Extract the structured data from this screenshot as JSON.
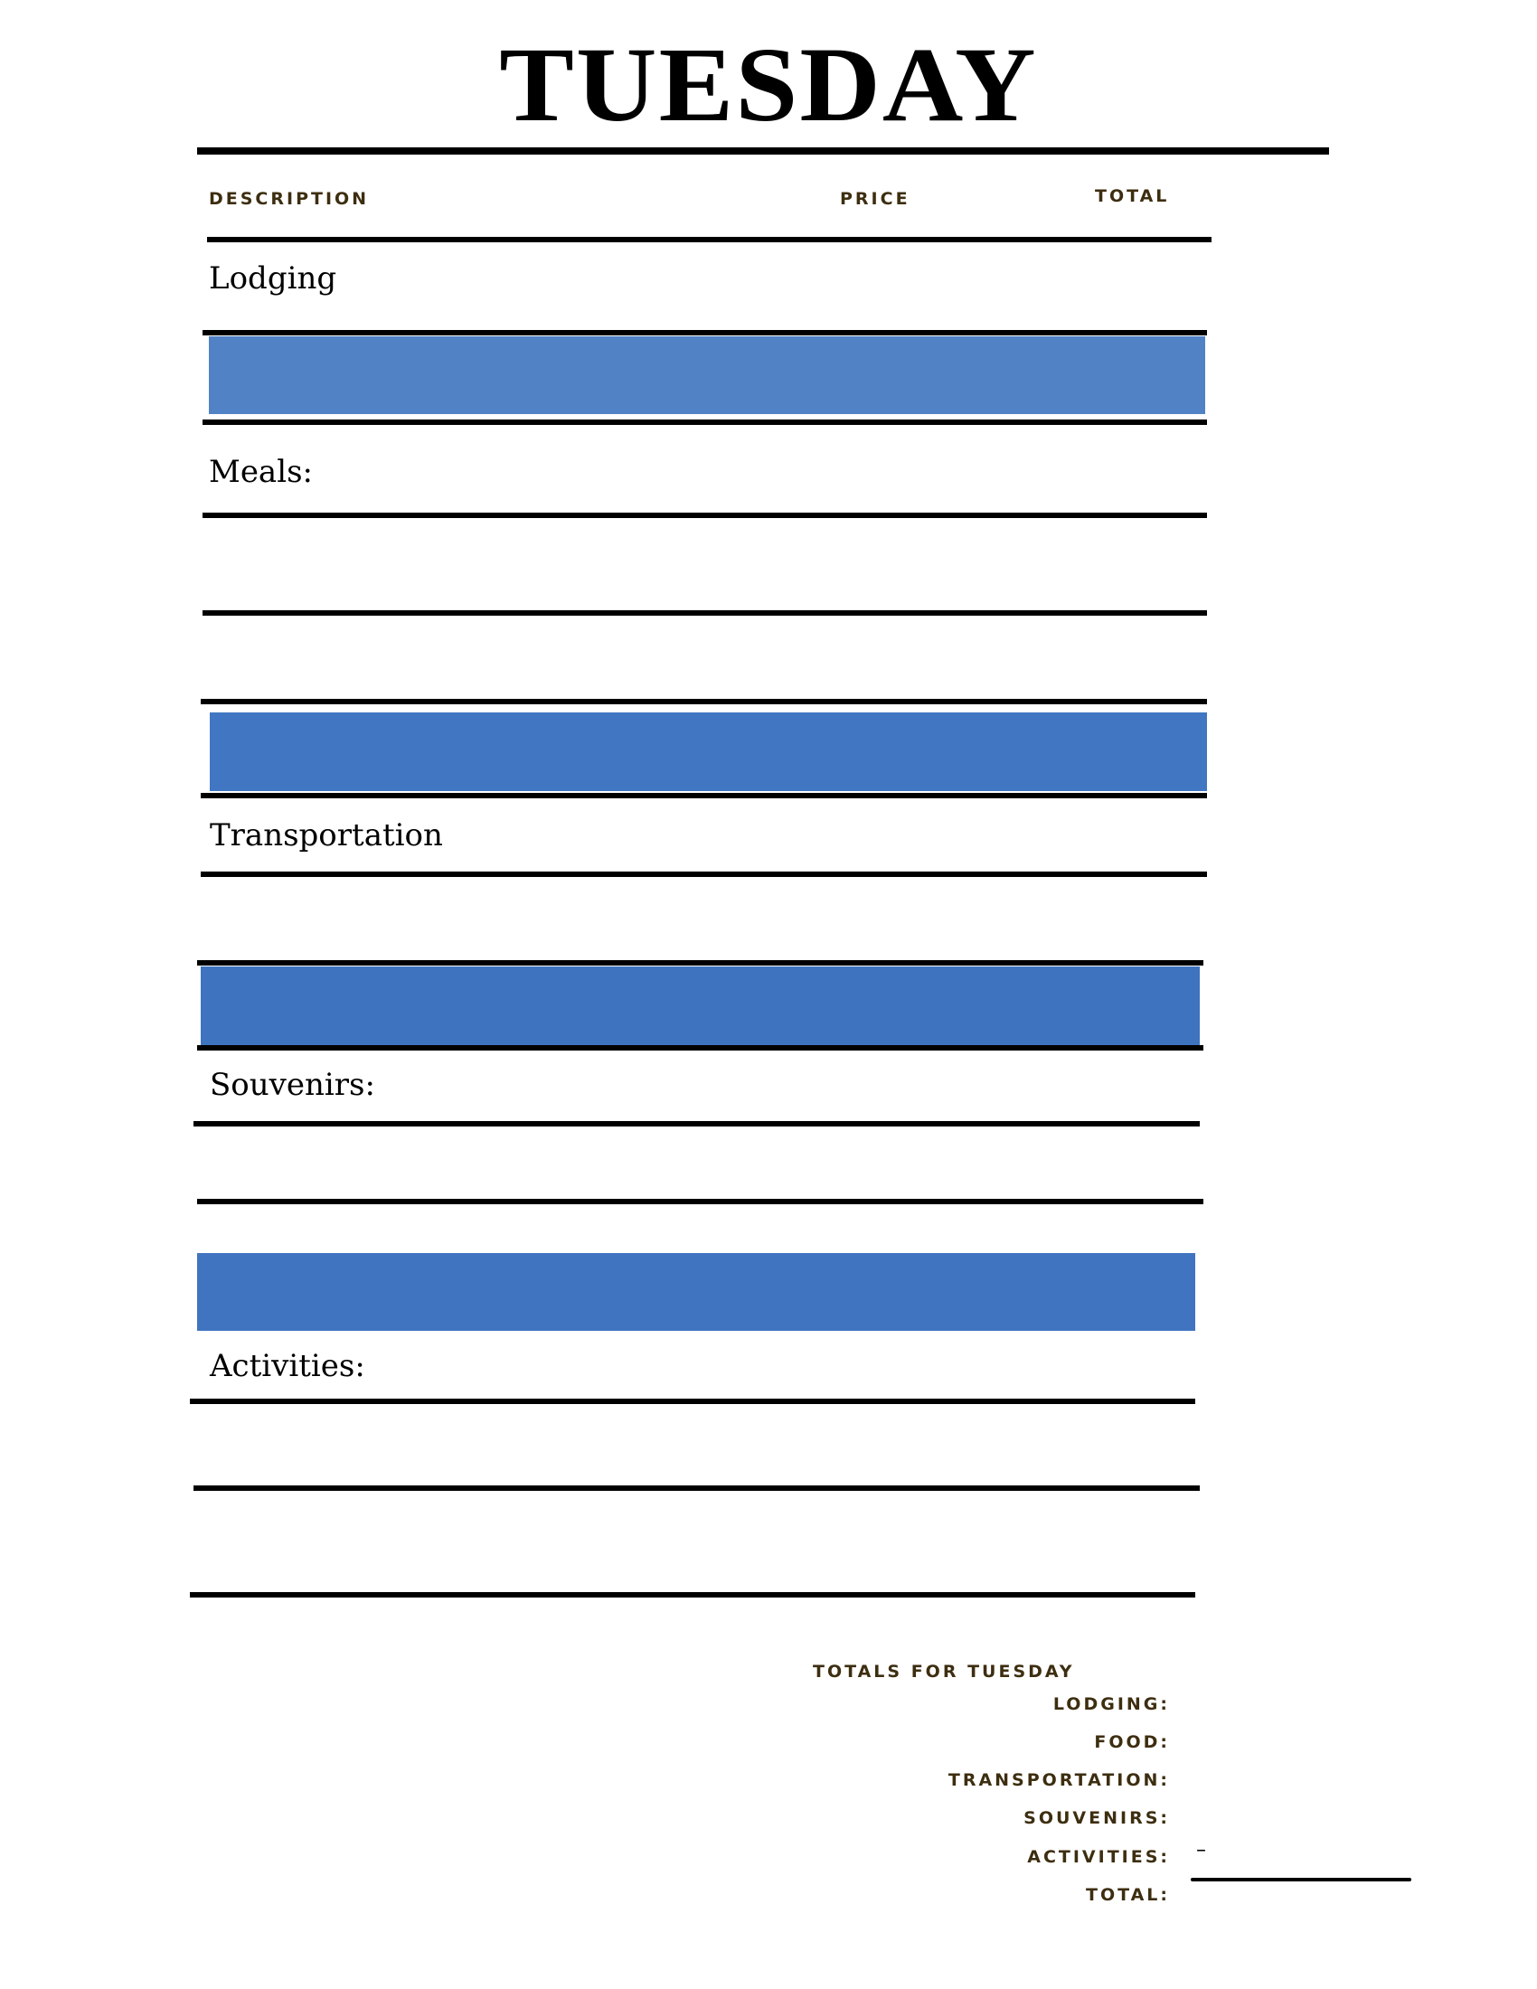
{
  "title": "TUESDAY",
  "headers": {
    "description": "DESCRIPTION",
    "price": "PRICE",
    "total": "TOTAL"
  },
  "sections": [
    {
      "label": "Lodging"
    },
    {
      "label": "Meals:"
    },
    {
      "label": "Transportation"
    },
    {
      "label": "Souvenirs:"
    },
    {
      "label": "Activities:"
    }
  ],
  "colors": {
    "band": "#4177c2",
    "band_light": "#5182c5",
    "label_text": "#3d2e10"
  },
  "totals": {
    "heading": "TOTALS FOR TUESDAY",
    "lodging": "LODGING:",
    "food": "FOOD:",
    "transportation": "TRANSPORTATION:",
    "souvenirs": "SOUVENIRS:",
    "activities": "ACTIVITIES:",
    "activities_value": "–",
    "total": "TOTAL:"
  }
}
